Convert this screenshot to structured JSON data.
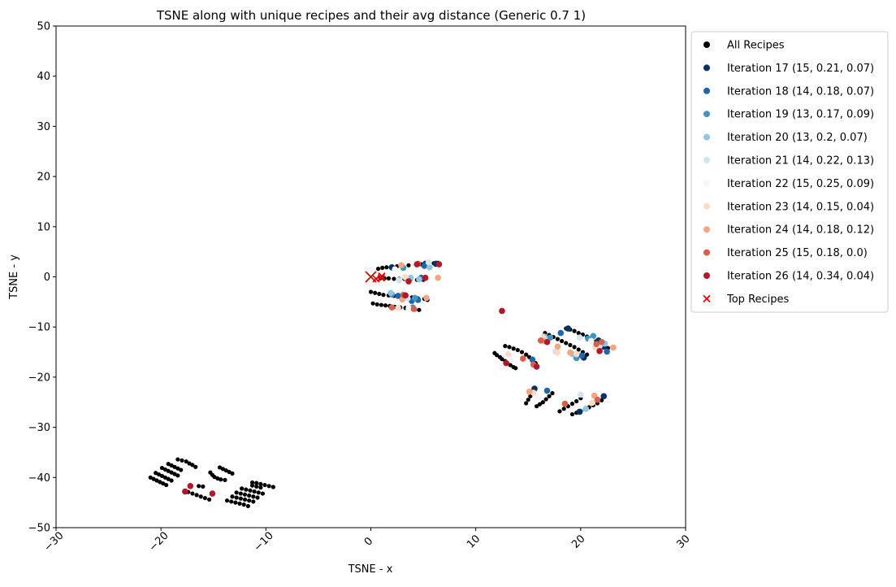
{
  "chart_data": {
    "type": "scatter",
    "title": "TSNE along with unique recipes and their avg distance (Generic 0.7 1)",
    "xlabel": "TSNE - x",
    "ylabel": "TSNE - y",
    "xlim": [
      -30,
      30
    ],
    "ylim": [
      -50,
      50
    ],
    "xticks": [
      -30,
      -20,
      -10,
      0,
      10,
      20,
      30
    ],
    "xtick_labels": [
      "−30",
      "−20",
      "−10",
      "0",
      "10",
      "20",
      "30"
    ],
    "yticks": [
      50,
      40,
      30,
      20,
      10,
      0,
      -10,
      -20,
      -30,
      -40,
      -50
    ],
    "ytick_labels": [
      "50",
      "40",
      "30",
      "20",
      "10",
      "0",
      "−10",
      "−20",
      "−30",
      "−40",
      "−50"
    ],
    "grid": false,
    "legend_position": "outside-upper-right",
    "series": [
      {
        "name": "All Recipes",
        "color": "#000000",
        "marker": "circle",
        "points": [
          [
            -21,
            -40
          ],
          [
            -20.7,
            -40.3
          ],
          [
            -20.4,
            -40.6
          ],
          [
            -20.1,
            -40.9
          ],
          [
            -19.8,
            -41.2
          ],
          [
            -19.5,
            -41.5
          ],
          [
            -20.5,
            -39.1
          ],
          [
            -20.2,
            -39.4
          ],
          [
            -19.9,
            -39.7
          ],
          [
            -19.6,
            -40
          ],
          [
            -19.3,
            -40.3
          ],
          [
            -19,
            -40.6
          ],
          [
            -19.9,
            -38.1
          ],
          [
            -19.6,
            -38.4
          ],
          [
            -19.3,
            -38.7
          ],
          [
            -19,
            -39
          ],
          [
            -18.7,
            -39.3
          ],
          [
            -18.4,
            -39.6
          ],
          [
            -19.3,
            -37.3
          ],
          [
            -19,
            -37.6
          ],
          [
            -18.7,
            -37.9
          ],
          [
            -18.4,
            -38.2
          ],
          [
            -18.1,
            -38.5
          ],
          [
            -18.4,
            -36.4
          ],
          [
            -18,
            -36.6
          ],
          [
            -17.6,
            -36.8
          ],
          [
            -17.3,
            -37.2
          ],
          [
            -17,
            -37.5
          ],
          [
            -16.7,
            -37.9
          ],
          [
            -17.4,
            -42.9
          ],
          [
            -17,
            -43.2
          ],
          [
            -16.6,
            -43.5
          ],
          [
            -16.2,
            -43.8
          ],
          [
            -15.8,
            -44.1
          ],
          [
            -15.4,
            -44.4
          ],
          [
            -16.4,
            -41.7
          ],
          [
            -16,
            -41.8
          ],
          [
            -15.3,
            -39
          ],
          [
            -15.1,
            -39.5
          ],
          [
            -14.9,
            -39.9
          ],
          [
            -14.6,
            -40.2
          ],
          [
            -14.3,
            -40.4
          ],
          [
            -13.9,
            -40.5
          ],
          [
            -14.4,
            -38
          ],
          [
            -14.1,
            -38.3
          ],
          [
            -13.8,
            -38.6
          ],
          [
            -13.5,
            -38.9
          ],
          [
            -13.2,
            -39.2
          ],
          [
            -13.7,
            -44.6
          ],
          [
            -13.3,
            -44.8
          ],
          [
            -12.9,
            -45
          ],
          [
            -12.5,
            -45.2
          ],
          [
            -12.1,
            -45.4
          ],
          [
            -11.7,
            -45.7
          ],
          [
            -13.2,
            -43.8
          ],
          [
            -12.8,
            -44
          ],
          [
            -12.4,
            -44.2
          ],
          [
            -12,
            -44.4
          ],
          [
            -11.6,
            -44.6
          ],
          [
            -11.2,
            -44.8
          ],
          [
            -12.8,
            -43
          ],
          [
            -12.4,
            -43.2
          ],
          [
            -12,
            -43.4
          ],
          [
            -11.6,
            -43.6
          ],
          [
            -11.2,
            -43.8
          ],
          [
            -10.8,
            -44
          ],
          [
            -12.3,
            -42.2
          ],
          [
            -11.9,
            -42.4
          ],
          [
            -11.5,
            -42.6
          ],
          [
            -11.1,
            -42.8
          ],
          [
            -10.7,
            -43
          ],
          [
            -10.3,
            -43.2
          ],
          [
            -11.3,
            -41
          ],
          [
            -10.9,
            -41.1
          ],
          [
            -10.5,
            -41.3
          ],
          [
            -10.1,
            -41.5
          ],
          [
            -9.7,
            -41.7
          ],
          [
            -9.3,
            -41.9
          ],
          [
            -11.3,
            -41.6
          ],
          [
            -10.9,
            -41.8
          ],
          [
            -10.5,
            -42
          ],
          [
            0.7,
            1.6
          ],
          [
            1.1,
            1.8
          ],
          [
            1.5,
            1.9
          ],
          [
            2,
            2
          ],
          [
            2.5,
            2.1
          ],
          [
            3,
            2.2
          ],
          [
            3.6,
            2.3
          ],
          [
            4.2,
            2.4
          ],
          [
            4.8,
            2.5
          ],
          [
            5.4,
            2.6
          ],
          [
            6,
            2.7
          ],
          [
            6.4,
            2.8
          ],
          [
            0.9,
            -0.3
          ],
          [
            1.3,
            -0.3
          ],
          [
            1.7,
            -0.3
          ],
          [
            2.2,
            -0.4
          ],
          [
            2.7,
            -0.4
          ],
          [
            3.2,
            -0.4
          ],
          [
            3.8,
            -0.5
          ],
          [
            4.4,
            -0.6
          ],
          [
            5,
            -0.6
          ],
          [
            0,
            -3
          ],
          [
            0.4,
            -3.2
          ],
          [
            0.8,
            -3.4
          ],
          [
            1.2,
            -3.6
          ],
          [
            1.7,
            -3.7
          ],
          [
            2.2,
            -3.8
          ],
          [
            2.7,
            -3.9
          ],
          [
            3.3,
            -4
          ],
          [
            3.9,
            -4.1
          ],
          [
            4.5,
            -4.3
          ],
          [
            5.1,
            -4.4
          ],
          [
            5.4,
            -4.6
          ],
          [
            0.2,
            -5.3
          ],
          [
            0.6,
            -5.5
          ],
          [
            1,
            -5.6
          ],
          [
            1.4,
            -5.7
          ],
          [
            1.8,
            -5.8
          ],
          [
            2.3,
            -6
          ],
          [
            2.8,
            -6.1
          ],
          [
            3.3,
            -6.2
          ],
          [
            3.8,
            -6.3
          ],
          [
            4.2,
            -6.5
          ],
          [
            4.6,
            -6.6
          ],
          [
            11.8,
            -15.2
          ],
          [
            12,
            -15.6
          ],
          [
            12.3,
            -16
          ],
          [
            12.5,
            -16.4
          ],
          [
            12.8,
            -16.8
          ],
          [
            13,
            -17.2
          ],
          [
            13.3,
            -17.6
          ],
          [
            13.6,
            -18
          ],
          [
            13.8,
            -18.2
          ],
          [
            12.8,
            -13.8
          ],
          [
            13.2,
            -14
          ],
          [
            13.6,
            -14.3
          ],
          [
            14,
            -14.6
          ],
          [
            14.4,
            -15
          ],
          [
            14.8,
            -15.5
          ],
          [
            15.1,
            -16
          ],
          [
            15.4,
            -16.5
          ],
          [
            15.7,
            -17.2
          ],
          [
            16.6,
            -11.2
          ],
          [
            17,
            -11.6
          ],
          [
            17.4,
            -12
          ],
          [
            17.8,
            -12.4
          ],
          [
            18.2,
            -12.8
          ],
          [
            18.6,
            -13.2
          ],
          [
            19,
            -13.6
          ],
          [
            19.4,
            -14
          ],
          [
            19.8,
            -14.5
          ],
          [
            20.2,
            -15
          ],
          [
            20.6,
            -15.5
          ],
          [
            18.6,
            -10.3
          ],
          [
            19,
            -10.5
          ],
          [
            19.4,
            -10.8
          ],
          [
            19.8,
            -11.2
          ],
          [
            20.2,
            -11.5
          ],
          [
            20.6,
            -11.9
          ],
          [
            21,
            -12.4
          ],
          [
            21.4,
            -12.9
          ],
          [
            21.8,
            -13.4
          ],
          [
            22.2,
            -13.8
          ],
          [
            22.6,
            -14.2
          ],
          [
            14.8,
            -25.2
          ],
          [
            15,
            -24.5
          ],
          [
            15.2,
            -23.8
          ],
          [
            15.4,
            -23.2
          ],
          [
            15.6,
            -22.6
          ],
          [
            15.8,
            -25.8
          ],
          [
            16.1,
            -25.4
          ],
          [
            16.4,
            -25
          ],
          [
            16.7,
            -24.4
          ],
          [
            17,
            -23.8
          ],
          [
            17.3,
            -23.2
          ],
          [
            18,
            -26.8
          ],
          [
            18.4,
            -26.3
          ],
          [
            18.8,
            -25.8
          ],
          [
            19.2,
            -25.3
          ],
          [
            19.6,
            -24.8
          ],
          [
            20,
            -24.2
          ],
          [
            19.2,
            -27.4
          ],
          [
            19.6,
            -27.1
          ],
          [
            20,
            -26.8
          ],
          [
            20.4,
            -26.4
          ],
          [
            20.8,
            -26
          ],
          [
            21.2,
            -25.6
          ],
          [
            21.6,
            -25.2
          ],
          [
            22,
            -24.6
          ]
        ]
      },
      {
        "name": "Iteration 17 (15, 0.21, 0.07)",
        "color": "#053061",
        "marker": "circle",
        "points": [
          [
            6.2,
            2.6
          ],
          [
            2,
            1.9
          ],
          [
            15.6,
            -22.3
          ],
          [
            18.8,
            -10.3
          ],
          [
            22.2,
            -13.9
          ],
          [
            21.7,
            -12.7
          ],
          [
            22.2,
            -23.8
          ],
          [
            20.3,
            -16.1
          ],
          [
            5.2,
            2.6
          ],
          [
            19.9,
            -26.9
          ]
        ]
      },
      {
        "name": "Iteration 18 (14, 0.18, 0.07)",
        "color": "#2166ac",
        "marker": "circle",
        "points": [
          [
            4.5,
            -4.6
          ],
          [
            3.9,
            -4.8
          ],
          [
            5.1,
            2.2
          ],
          [
            16.8,
            -22.7
          ],
          [
            20.1,
            -15.7
          ],
          [
            22.5,
            -14.9
          ],
          [
            2.6,
            -3.8
          ],
          [
            18.1,
            -11.2
          ],
          [
            4.8,
            -0.2
          ],
          [
            15.4,
            -16.5
          ]
        ]
      },
      {
        "name": "Iteration 19 (13, 0.17, 0.09)",
        "color": "#4393c3",
        "marker": "circle",
        "points": [
          [
            4,
            -6.1
          ],
          [
            4.2,
            -4.2
          ],
          [
            2,
            -3.5
          ],
          [
            17.1,
            -12.1
          ],
          [
            19.6,
            -16.2
          ],
          [
            21.2,
            -11.8
          ],
          [
            20.7,
            -12.3
          ],
          [
            3.1,
            1.8
          ]
        ]
      },
      {
        "name": "Iteration 20 (13, 0.2, 0.07)",
        "color": "#92c5de",
        "marker": "circle",
        "points": [
          [
            5.6,
            1.9
          ],
          [
            3.8,
            -0.2
          ],
          [
            1.9,
            -3.2
          ],
          [
            16.5,
            -11.9
          ],
          [
            19.2,
            -15.4
          ],
          [
            22.3,
            -13.3
          ],
          [
            20.5,
            -26.3
          ],
          [
            4.6,
            -0.5
          ]
        ]
      },
      {
        "name": "Iteration 21 (14, 0.22, 0.13)",
        "color": "#d1e5f0",
        "marker": "circle",
        "points": [
          [
            2.7,
            -0.7
          ],
          [
            3.5,
            -4.3
          ],
          [
            16.3,
            -12.7
          ],
          [
            17.6,
            -14.9
          ],
          [
            20,
            -23.5
          ],
          [
            21.8,
            -13.8
          ],
          [
            5.5,
            2.9
          ],
          [
            19.9,
            -12.1
          ]
        ]
      },
      {
        "name": "Iteration 22 (15, 0.25, 0.09)",
        "color": "#f7f7f7",
        "marker": "circle",
        "points": [
          [
            2.3,
            1.5
          ],
          [
            4.3,
            2.4
          ],
          [
            17.9,
            -13.9
          ],
          [
            21,
            -12.8
          ],
          [
            15.9,
            -24
          ],
          [
            3.6,
            -6.3
          ]
        ]
      },
      {
        "name": "Iteration 23 (14, 0.15, 0.04)",
        "color": "#fddbc7",
        "marker": "circle",
        "points": [
          [
            2.6,
            -6.2
          ],
          [
            3.3,
            -0.1
          ],
          [
            16.4,
            -12.1
          ],
          [
            17.8,
            -15.1
          ],
          [
            19.6,
            -15.4
          ],
          [
            21.4,
            -14
          ],
          [
            15.5,
            -23.1
          ],
          [
            13.1,
            -15.4
          ],
          [
            21.1,
            -25.1
          ]
        ]
      },
      {
        "name": "Iteration 24 (14, 0.18, 0.12)",
        "color": "#f4a582",
        "marker": "circle",
        "points": [
          [
            6.4,
            -0.2
          ],
          [
            2.9,
            2.3
          ],
          [
            5.3,
            -4.2
          ],
          [
            16.5,
            -12.8
          ],
          [
            17.8,
            -13.9
          ],
          [
            19,
            -15.1
          ],
          [
            23.1,
            -14.1
          ],
          [
            21.3,
            -23.7
          ],
          [
            15.1,
            -22.9
          ],
          [
            3,
            -4.5
          ]
        ]
      },
      {
        "name": "Iteration 25 (15, 0.18, 0.0)",
        "color": "#d6604d",
        "marker": "circle",
        "points": [
          [
            4.1,
            -6.4
          ],
          [
            2,
            -6.1
          ],
          [
            4.5,
            2.6
          ],
          [
            16.2,
            -12.7
          ],
          [
            14.5,
            -16.3
          ],
          [
            22,
            -13
          ],
          [
            21.6,
            -24.5
          ],
          [
            18.5,
            -25.3
          ],
          [
            15.5,
            -17.5
          ],
          [
            3.1,
            -3.6
          ],
          [
            21.5,
            -13.4
          ]
        ]
      },
      {
        "name": "Iteration 26 (14, 0.34, 0.04)",
        "color": "#b2182b",
        "marker": "circle",
        "points": [
          [
            6.5,
            2.5
          ],
          [
            3.6,
            -0.9
          ],
          [
            5.2,
            -0.2
          ],
          [
            3.3,
            -3.7
          ],
          [
            12.5,
            -6.8
          ],
          [
            12.9,
            -17.2
          ],
          [
            21.8,
            -14.8
          ],
          [
            15.8,
            -17.9
          ],
          [
            16.8,
            -13
          ],
          [
            -17.2,
            -41.7
          ],
          [
            -15.1,
            -43.2
          ],
          [
            -17.7,
            -42.8
          ],
          [
            4.4,
            2.5
          ]
        ]
      },
      {
        "name": "Top Recipes",
        "color": "#dd0000",
        "marker": "x",
        "points": [
          [
            0,
            0
          ],
          [
            0.5,
            -0.4
          ],
          [
            1,
            -0.2
          ],
          [
            1.05,
            0.15
          ]
        ]
      }
    ]
  }
}
